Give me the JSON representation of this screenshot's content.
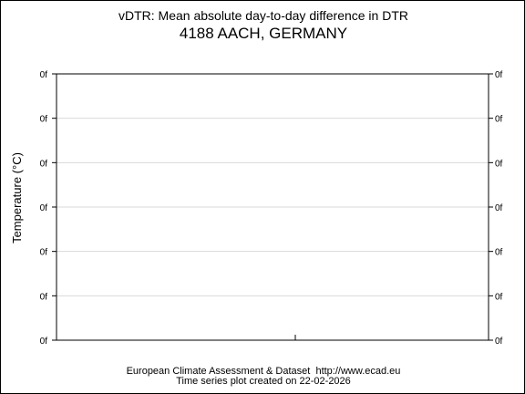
{
  "header": {
    "title": "vDTR: Mean absolute day-to-day difference in DTR",
    "subtitle": "4188 AACH, GERMANY"
  },
  "footer": {
    "source": "European Climate Assessment & Dataset  http://www.ecad.eu",
    "created": "Time series plot created on 22-02-2026"
  },
  "chart_data": {
    "type": "line",
    "title": "vDTR: Mean absolute day-to-day difference in DTR",
    "subtitle": "4188 AACH, GERMANY",
    "xlabel": "",
    "ylabel": "Temperature (°C)",
    "y_ticks": [
      "0f",
      "0f",
      "0f",
      "0f",
      "0f",
      "0f",
      "0f"
    ],
    "x_ticks": [],
    "series": [],
    "grid": true,
    "legend": "none",
    "colors": {
      "axis": "#000000",
      "grid": "#d9d9d9",
      "background": "#ffffff"
    }
  }
}
